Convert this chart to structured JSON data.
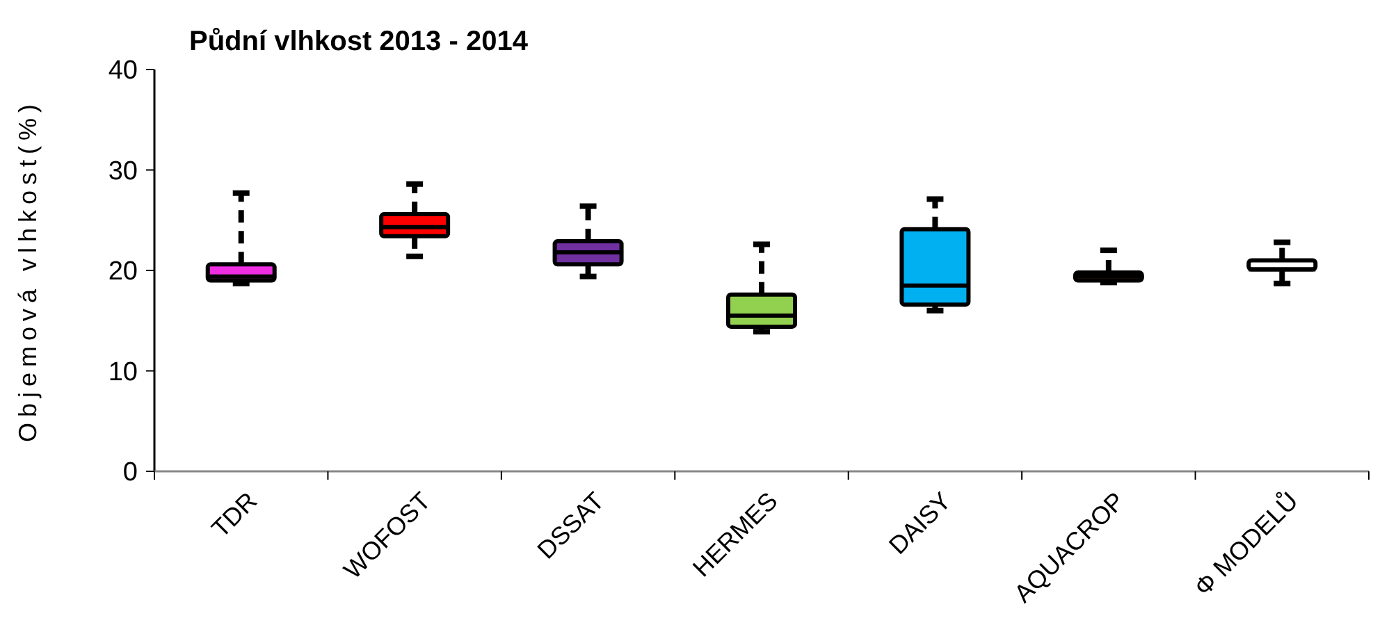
{
  "chart_data": {
    "type": "box",
    "title": "Půdní vlhkost 2013 - 2014",
    "ylabel": "Objemová vlhkost(%)",
    "categories": [
      "TDR",
      "WOFOST",
      "DSSAT",
      "HERMES",
      "DAISY",
      "AQUACROP",
      "Φ MODELŮ"
    ],
    "colors": [
      "#ee2ee0",
      "#ff0000",
      "#7030a0",
      "#92d050",
      "#00b0f0",
      "#c55a11",
      "#ffffff"
    ],
    "boxes": [
      {
        "low": 18.7,
        "q1": 19.0,
        "median": 19.4,
        "q3": 20.6,
        "high": 27.7
      },
      {
        "low": 21.4,
        "q1": 23.4,
        "median": 24.3,
        "q3": 25.6,
        "high": 28.6
      },
      {
        "low": 19.4,
        "q1": 20.6,
        "median": 21.8,
        "q3": 22.9,
        "high": 26.4
      },
      {
        "low": 13.9,
        "q1": 14.4,
        "median": 15.5,
        "q3": 17.6,
        "high": 22.6
      },
      {
        "low": 16.0,
        "q1": 16.6,
        "median": 18.5,
        "q3": 24.1,
        "high": 27.1
      },
      {
        "low": 18.8,
        "q1": 19.0,
        "median": 19.4,
        "q3": 19.8,
        "high": 22.0
      },
      {
        "low": 18.7,
        "q1": 20.1,
        "median": 20.1,
        "q3": 21.0,
        "high": 22.8
      }
    ],
    "ylim": [
      0,
      40
    ],
    "yticks": [
      0,
      10,
      20,
      30,
      40
    ],
    "line_style": "dashed",
    "grid": false
  }
}
